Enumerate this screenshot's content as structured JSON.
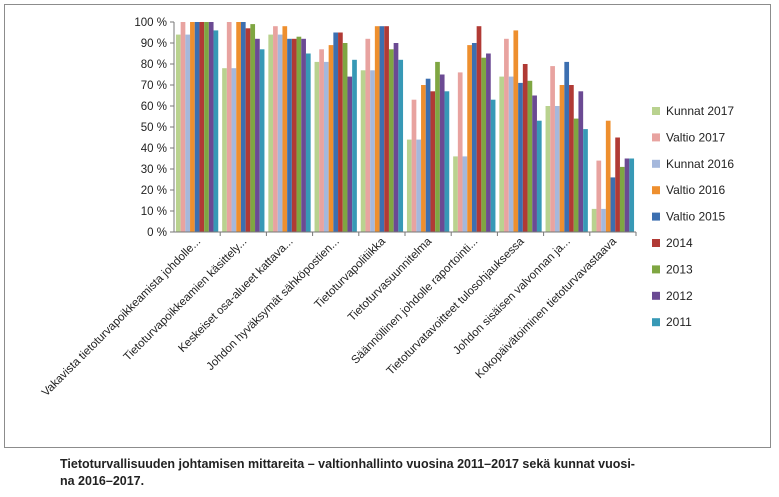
{
  "chart_data": {
    "type": "bar",
    "categories": [
      "Vakavista tietoturvapoikkeamista johdolle...",
      "Tietoturvapoikkeamien käsittely...",
      "Keskeiset osa-alueet kattava...",
      "Johdon hyväksymät sähköpostien...",
      "Tietoturvapolitiikka",
      "Tietoturvasuunnitelma",
      "Säännöllinen johdolle raportointi...",
      "Tietoturvatavoitteet tulosohjauksessa",
      "Johdon sisäisen valvonnan ja...",
      "Kokopäivätoiminen tietoturvavastaava"
    ],
    "series": [
      {
        "name": "Kunnat 2017",
        "color": "#b9d28f",
        "values": [
          94,
          78,
          94,
          81,
          77,
          44,
          36,
          74,
          60,
          11
        ]
      },
      {
        "name": "Valtio 2017",
        "color": "#e8a3a0",
        "values": [
          100,
          100,
          98,
          87,
          92,
          63,
          76,
          92,
          79,
          34
        ]
      },
      {
        "name": "Kunnat 2016",
        "color": "#a5b8dc",
        "values": [
          94,
          78,
          94,
          81,
          77,
          44,
          36,
          74,
          60,
          11
        ]
      },
      {
        "name": "Valtio 2016",
        "color": "#ee8f2e",
        "values": [
          100,
          100,
          98,
          89,
          98,
          70,
          89,
          96,
          70,
          53
        ]
      },
      {
        "name": "Valtio 2015",
        "color": "#3c6fb0",
        "values": [
          100,
          100,
          92,
          95,
          98,
          73,
          90,
          71,
          81,
          26
        ]
      },
      {
        "name": "2014",
        "color": "#b13a35",
        "values": [
          100,
          97,
          92,
          95,
          98,
          67,
          98,
          80,
          70,
          45
        ]
      },
      {
        "name": "2013",
        "color": "#7fa642",
        "values": [
          100,
          99,
          93,
          90,
          87,
          81,
          83,
          72,
          54,
          31
        ]
      },
      {
        "name": "2012",
        "color": "#6b4a93",
        "values": [
          100,
          92,
          92,
          74,
          90,
          75,
          85,
          65,
          67,
          35
        ]
      },
      {
        "name": "2011",
        "color": "#3799b6",
        "values": [
          96,
          87,
          85,
          82,
          82,
          67,
          63,
          53,
          49,
          35
        ]
      }
    ],
    "ylim": [
      0,
      100
    ],
    "yticks": [
      "0 %",
      "10 %",
      "20 %",
      "30 %",
      "40 %",
      "50 %",
      "60 %",
      "70 %",
      "80 %",
      "90 %",
      "100 %"
    ],
    "legend": "right",
    "grid": false
  },
  "caption": {
    "line1": "Tietoturvallisuuden johtamisen mittareita – valtionhallinto vuosina 2011–2017 sekä kunnat vuosi-",
    "line2": "na 2016–2017."
  }
}
